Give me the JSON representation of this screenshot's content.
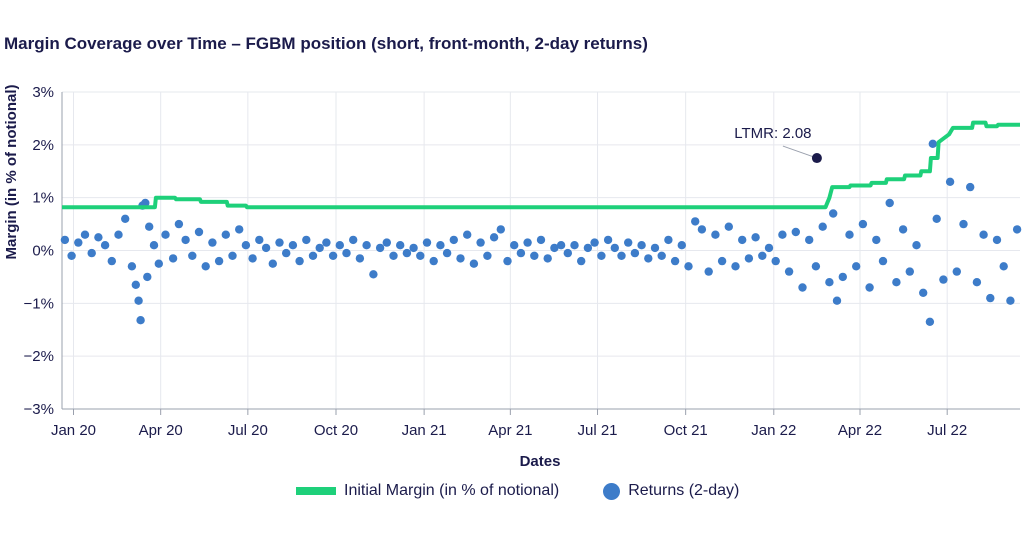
{
  "title": "Margin Coverage over Time – FGBM position (short, front-month, 2-day returns)",
  "chart_data": {
    "type": "line+scatter",
    "xlabel": "Dates",
    "ylabel": "Margin (in % of notional)",
    "ylim": [
      -3,
      3
    ],
    "yticks": [
      "3%",
      "2%",
      "1%",
      "0%",
      "−1%",
      "−2%",
      "−3%"
    ],
    "xticks": [
      "Jan 20",
      "Apr 20",
      "Jul 20",
      "Oct 20",
      "Jan 21",
      "Apr 21",
      "Jul 21",
      "Oct 21",
      "Jan 22",
      "Apr 22",
      "Jul 22"
    ],
    "xlim": [
      "2019-12-20",
      "2022-09-15"
    ],
    "grid": "vertical+horizontal",
    "legend_position": "bottom",
    "colors": {
      "margin": "#1ed07a",
      "returns": "#3d7cc9",
      "axis_text": "#1b1b4b"
    },
    "series": [
      {
        "name": "Initial Margin (in % of notional)",
        "kind": "step-line",
        "points": [
          [
            "2019-12-20",
            0.82
          ],
          [
            "2020-03-26",
            0.82
          ],
          [
            "2020-03-27",
            1.0
          ],
          [
            "2020-04-16",
            1.0
          ],
          [
            "2020-04-17",
            0.97
          ],
          [
            "2020-05-12",
            0.97
          ],
          [
            "2020-05-13",
            0.92
          ],
          [
            "2020-06-09",
            0.92
          ],
          [
            "2020-06-10",
            0.85
          ],
          [
            "2020-06-29",
            0.85
          ],
          [
            "2020-06-30",
            0.82
          ],
          [
            "2022-02-24",
            0.82
          ],
          [
            "2022-02-28",
            1.0
          ],
          [
            "2022-03-03",
            1.2
          ],
          [
            "2022-03-21",
            1.2
          ],
          [
            "2022-03-22",
            1.23
          ],
          [
            "2022-04-12",
            1.23
          ],
          [
            "2022-04-13",
            1.28
          ],
          [
            "2022-04-28",
            1.28
          ],
          [
            "2022-04-29",
            1.35
          ],
          [
            "2022-05-17",
            1.35
          ],
          [
            "2022-05-18",
            1.42
          ],
          [
            "2022-06-03",
            1.42
          ],
          [
            "2022-06-04",
            1.5
          ],
          [
            "2022-06-13",
            1.5
          ],
          [
            "2022-06-14",
            1.75
          ],
          [
            "2022-06-21",
            1.75
          ],
          [
            "2022-06-22",
            2.05
          ],
          [
            "2022-07-03",
            2.2
          ],
          [
            "2022-07-07",
            2.32
          ],
          [
            "2022-07-27",
            2.32
          ],
          [
            "2022-07-28",
            2.42
          ],
          [
            "2022-08-10",
            2.42
          ],
          [
            "2022-08-11",
            2.35
          ],
          [
            "2022-08-22",
            2.35
          ],
          [
            "2022-08-23",
            2.38
          ],
          [
            "2022-09-15",
            2.38
          ]
        ]
      },
      {
        "name": "Returns (2-day)",
        "kind": "scatter",
        "points": [
          [
            "2019-12-23",
            0.2
          ],
          [
            "2019-12-30",
            -0.1
          ],
          [
            "2020-01-06",
            0.15
          ],
          [
            "2020-01-13",
            0.3
          ],
          [
            "2020-01-20",
            -0.05
          ],
          [
            "2020-01-27",
            0.25
          ],
          [
            "2020-02-03",
            0.1
          ],
          [
            "2020-02-10",
            -0.2
          ],
          [
            "2020-02-17",
            0.3
          ],
          [
            "2020-02-24",
            0.6
          ],
          [
            "2020-03-02",
            -0.3
          ],
          [
            "2020-03-06",
            -0.65
          ],
          [
            "2020-03-09",
            -0.95
          ],
          [
            "2020-03-11",
            -1.32
          ],
          [
            "2020-03-13",
            0.85
          ],
          [
            "2020-03-16",
            0.9
          ],
          [
            "2020-03-18",
            -0.5
          ],
          [
            "2020-03-20",
            0.45
          ],
          [
            "2020-03-25",
            0.1
          ],
          [
            "2020-03-30",
            -0.25
          ],
          [
            "2020-04-06",
            0.3
          ],
          [
            "2020-04-14",
            -0.15
          ],
          [
            "2020-04-20",
            0.5
          ],
          [
            "2020-04-27",
            0.2
          ],
          [
            "2020-05-04",
            -0.1
          ],
          [
            "2020-05-11",
            0.35
          ],
          [
            "2020-05-18",
            -0.3
          ],
          [
            "2020-05-25",
            0.15
          ],
          [
            "2020-06-01",
            -0.2
          ],
          [
            "2020-06-08",
            0.3
          ],
          [
            "2020-06-15",
            -0.1
          ],
          [
            "2020-06-22",
            0.4
          ],
          [
            "2020-06-29",
            0.1
          ],
          [
            "2020-07-06",
            -0.15
          ],
          [
            "2020-07-13",
            0.2
          ],
          [
            "2020-07-20",
            0.05
          ],
          [
            "2020-07-27",
            -0.25
          ],
          [
            "2020-08-03",
            0.15
          ],
          [
            "2020-08-10",
            -0.05
          ],
          [
            "2020-08-17",
            0.1
          ],
          [
            "2020-08-24",
            -0.2
          ],
          [
            "2020-08-31",
            0.2
          ],
          [
            "2020-09-07",
            -0.1
          ],
          [
            "2020-09-14",
            0.05
          ],
          [
            "2020-09-21",
            0.15
          ],
          [
            "2020-09-28",
            -0.1
          ],
          [
            "2020-10-05",
            0.1
          ],
          [
            "2020-10-12",
            -0.05
          ],
          [
            "2020-10-19",
            0.2
          ],
          [
            "2020-10-26",
            -0.15
          ],
          [
            "2020-11-02",
            0.1
          ],
          [
            "2020-11-09",
            -0.45
          ],
          [
            "2020-11-16",
            0.05
          ],
          [
            "2020-11-23",
            0.15
          ],
          [
            "2020-11-30",
            -0.1
          ],
          [
            "2020-12-07",
            0.1
          ],
          [
            "2020-12-14",
            -0.05
          ],
          [
            "2020-12-21",
            0.05
          ],
          [
            "2020-12-28",
            -0.1
          ],
          [
            "2021-01-04",
            0.15
          ],
          [
            "2021-01-11",
            -0.2
          ],
          [
            "2021-01-18",
            0.1
          ],
          [
            "2021-01-25",
            -0.05
          ],
          [
            "2021-02-01",
            0.2
          ],
          [
            "2021-02-08",
            -0.15
          ],
          [
            "2021-02-15",
            0.3
          ],
          [
            "2021-02-22",
            -0.25
          ],
          [
            "2021-03-01",
            0.15
          ],
          [
            "2021-03-08",
            -0.1
          ],
          [
            "2021-03-15",
            0.25
          ],
          [
            "2021-03-22",
            0.4
          ],
          [
            "2021-03-29",
            -0.2
          ],
          [
            "2021-04-05",
            0.1
          ],
          [
            "2021-04-12",
            -0.05
          ],
          [
            "2021-04-19",
            0.15
          ],
          [
            "2021-04-26",
            -0.1
          ],
          [
            "2021-05-03",
            0.2
          ],
          [
            "2021-05-10",
            -0.15
          ],
          [
            "2021-05-17",
            0.05
          ],
          [
            "2021-05-24",
            0.1
          ],
          [
            "2021-05-31",
            -0.05
          ],
          [
            "2021-06-07",
            0.1
          ],
          [
            "2021-06-14",
            -0.2
          ],
          [
            "2021-06-21",
            0.05
          ],
          [
            "2021-06-28",
            0.15
          ],
          [
            "2021-07-05",
            -0.1
          ],
          [
            "2021-07-12",
            0.2
          ],
          [
            "2021-07-19",
            0.05
          ],
          [
            "2021-07-26",
            -0.1
          ],
          [
            "2021-08-02",
            0.15
          ],
          [
            "2021-08-09",
            -0.05
          ],
          [
            "2021-08-16",
            0.1
          ],
          [
            "2021-08-23",
            -0.15
          ],
          [
            "2021-08-30",
            0.05
          ],
          [
            "2021-09-06",
            -0.1
          ],
          [
            "2021-09-13",
            0.2
          ],
          [
            "2021-09-20",
            -0.2
          ],
          [
            "2021-09-27",
            0.1
          ],
          [
            "2021-10-04",
            -0.3
          ],
          [
            "2021-10-11",
            0.55
          ],
          [
            "2021-10-18",
            0.4
          ],
          [
            "2021-10-25",
            -0.4
          ],
          [
            "2021-11-01",
            0.3
          ],
          [
            "2021-11-08",
            -0.2
          ],
          [
            "2021-11-15",
            0.45
          ],
          [
            "2021-11-22",
            -0.3
          ],
          [
            "2021-11-29",
            0.2
          ],
          [
            "2021-12-06",
            -0.15
          ],
          [
            "2021-12-13",
            0.25
          ],
          [
            "2021-12-20",
            -0.1
          ],
          [
            "2021-12-27",
            0.05
          ],
          [
            "2022-01-03",
            -0.2
          ],
          [
            "2022-01-10",
            0.3
          ],
          [
            "2022-01-17",
            -0.4
          ],
          [
            "2022-01-24",
            0.35
          ],
          [
            "2022-01-31",
            -0.7
          ],
          [
            "2022-02-07",
            0.2
          ],
          [
            "2022-02-14",
            -0.3
          ],
          [
            "2022-02-21",
            0.45
          ],
          [
            "2022-02-28",
            -0.6
          ],
          [
            "2022-03-04",
            0.7
          ],
          [
            "2022-03-08",
            -0.95
          ],
          [
            "2022-03-14",
            -0.5
          ],
          [
            "2022-03-21",
            0.3
          ],
          [
            "2022-03-28",
            -0.3
          ],
          [
            "2022-04-04",
            0.5
          ],
          [
            "2022-04-11",
            -0.7
          ],
          [
            "2022-04-18",
            0.2
          ],
          [
            "2022-04-25",
            -0.2
          ],
          [
            "2022-05-02",
            0.9
          ],
          [
            "2022-05-09",
            -0.6
          ],
          [
            "2022-05-16",
            0.4
          ],
          [
            "2022-05-23",
            -0.4
          ],
          [
            "2022-05-30",
            0.1
          ],
          [
            "2022-06-06",
            -0.8
          ],
          [
            "2022-06-13",
            -1.35
          ],
          [
            "2022-06-16",
            2.02
          ],
          [
            "2022-06-20",
            0.6
          ],
          [
            "2022-06-27",
            -0.55
          ],
          [
            "2022-07-04",
            1.3
          ],
          [
            "2022-07-11",
            -0.4
          ],
          [
            "2022-07-18",
            0.5
          ],
          [
            "2022-07-25",
            1.2
          ],
          [
            "2022-08-01",
            -0.6
          ],
          [
            "2022-08-08",
            0.3
          ],
          [
            "2022-08-15",
            -0.9
          ],
          [
            "2022-08-22",
            0.2
          ],
          [
            "2022-08-29",
            -0.3
          ],
          [
            "2022-09-05",
            -0.95
          ],
          [
            "2022-09-12",
            0.4
          ]
        ]
      }
    ],
    "annotations": [
      {
        "text": "LTMR: 2.08",
        "point": [
          "2022-02-15",
          1.75
        ]
      }
    ]
  },
  "legend": [
    {
      "label": "Initial Margin (in % of notional)"
    },
    {
      "label": "Returns (2-day)"
    }
  ]
}
